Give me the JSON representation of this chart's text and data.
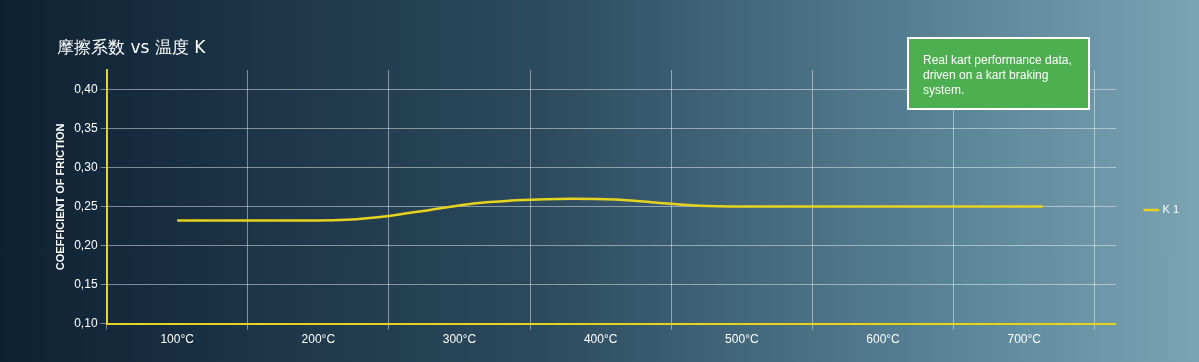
{
  "chart_data": {
    "type": "line",
    "title": "摩擦系数 vs 温度 K",
    "ylabel": "COEFFICIENT OF FRICTION",
    "annotations": [
      "Real kart performance data, driven on a kart braking system."
    ],
    "x": [
      100,
      150,
      200,
      220,
      250,
      280,
      310,
      340,
      380,
      410,
      440,
      470,
      500,
      600,
      713
    ],
    "series": [
      {
        "name": "K 1",
        "color": "#e6d320",
        "values": [
          0.232,
          0.232,
          0.232,
          0.233,
          0.238,
          0.246,
          0.254,
          0.258,
          0.26,
          0.259,
          0.255,
          0.251,
          0.25,
          0.25,
          0.25
        ]
      }
    ],
    "xlim": [
      50,
      765
    ],
    "xticks": [
      {
        "value": 50,
        "label": null
      },
      {
        "value": 100,
        "label": "100°C"
      },
      {
        "value": 150,
        "label": null
      },
      {
        "value": 200,
        "label": "200°C"
      },
      {
        "value": 250,
        "label": null
      },
      {
        "value": 300,
        "label": "300°C"
      },
      {
        "value": 350,
        "label": null
      },
      {
        "value": 400,
        "label": "400°C"
      },
      {
        "value": 450,
        "label": null
      },
      {
        "value": 500,
        "label": "500°C"
      },
      {
        "value": 550,
        "label": null
      },
      {
        "value": 600,
        "label": "600°C"
      },
      {
        "value": 650,
        "label": null
      },
      {
        "value": 700,
        "label": "700°C"
      },
      {
        "value": 750,
        "label": null
      }
    ],
    "ylim": [
      0.1,
      0.425
    ],
    "yticks": [
      {
        "value": 0.1,
        "label": "0,10"
      },
      {
        "value": 0.15,
        "label": "0,15"
      },
      {
        "value": 0.2,
        "label": "0,20"
      },
      {
        "value": 0.25,
        "label": "0,25"
      },
      {
        "value": 0.3,
        "label": "0,30"
      },
      {
        "value": 0.35,
        "label": "0,35"
      },
      {
        "value": 0.4,
        "label": "0,40"
      }
    ],
    "grid": true,
    "legend": "right",
    "marker": "none",
    "line_style": "solid"
  }
}
